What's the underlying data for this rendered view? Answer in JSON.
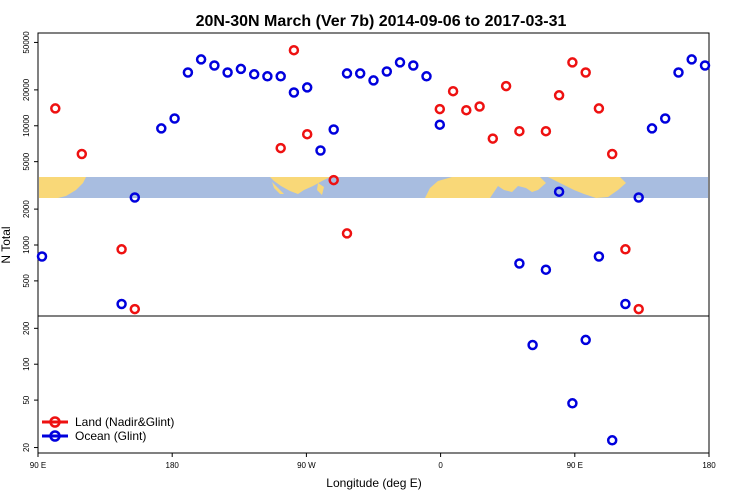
{
  "chart_data": {
    "type": "scatter",
    "title": "20N-30N March (Ver 7b)   2014-09-06 to 2017-03-31",
    "xlabel": "Longitude (deg E)",
    "ylabel": "N Total",
    "y_scale": "log",
    "ylim": [
      18,
      60000
    ],
    "x_ticks": [
      "90 E",
      "180",
      "90 W",
      "0",
      "90 E",
      "180"
    ],
    "y_ticks": [
      50000,
      20000,
      10000,
      5000,
      2000,
      1000,
      500,
      200,
      100,
      50,
      20
    ],
    "legend": [
      "Land (Nadir&Glint)",
      "Ocean (Glint)"
    ],
    "legend_position": "bottom-left",
    "colors": {
      "land": "#ee1111",
      "ocean": "#0000dd",
      "map_ocean": "#a8bde0",
      "map_land": "#f9d878"
    },
    "series": [
      {
        "name": "Land (Nadir&Glint)",
        "points": [
          {
            "lon_index": 1,
            "value": 14000
          },
          {
            "lon_index": 3,
            "value": 5800
          },
          {
            "lon_index": 6,
            "value": 920
          },
          {
            "lon_index": 7,
            "value": 290
          },
          {
            "lon_index": 18,
            "value": 6500
          },
          {
            "lon_index": 19,
            "value": 43000
          },
          {
            "lon_index": 20,
            "value": 8500
          },
          {
            "lon_index": 22,
            "value": 3500
          },
          {
            "lon_index": 23,
            "value": 1250
          },
          {
            "lon_index": 30,
            "value": 13800
          },
          {
            "lon_index": 31,
            "value": 19500
          },
          {
            "lon_index": 32,
            "value": 13500
          },
          {
            "lon_index": 33,
            "value": 14500
          },
          {
            "lon_index": 34,
            "value": 7800
          },
          {
            "lon_index": 35,
            "value": 21500
          },
          {
            "lon_index": 36,
            "value": 9000
          },
          {
            "lon_index": 38,
            "value": 9000
          },
          {
            "lon_index": 39,
            "value": 18000
          },
          {
            "lon_index": 40,
            "value": 34000
          },
          {
            "lon_index": 41,
            "value": 28000
          },
          {
            "lon_index": 42,
            "value": 14000
          },
          {
            "lon_index": 43,
            "value": 5800
          },
          {
            "lon_index": 44,
            "value": 920
          },
          {
            "lon_index": 45,
            "value": 290
          }
        ]
      },
      {
        "name": "Ocean (Glint)",
        "points": [
          {
            "lon_index": 0,
            "value": 800
          },
          {
            "lon_index": 6,
            "value": 320
          },
          {
            "lon_index": 7,
            "value": 2500
          },
          {
            "lon_index": 9,
            "value": 9500
          },
          {
            "lon_index": 10,
            "value": 11500
          },
          {
            "lon_index": 11,
            "value": 28000
          },
          {
            "lon_index": 12,
            "value": 36000
          },
          {
            "lon_index": 13,
            "value": 32000
          },
          {
            "lon_index": 14,
            "value": 28000
          },
          {
            "lon_index": 15,
            "value": 30000
          },
          {
            "lon_index": 16,
            "value": 27000
          },
          {
            "lon_index": 17,
            "value": 26000
          },
          {
            "lon_index": 18,
            "value": 26000
          },
          {
            "lon_index": 19,
            "value": 19000
          },
          {
            "lon_index": 20,
            "value": 21000
          },
          {
            "lon_index": 21,
            "value": 6200
          },
          {
            "lon_index": 22,
            "value": 9300
          },
          {
            "lon_index": 23,
            "value": 27500
          },
          {
            "lon_index": 24,
            "value": 27500
          },
          {
            "lon_index": 25,
            "value": 24000
          },
          {
            "lon_index": 26,
            "value": 28500
          },
          {
            "lon_index": 27,
            "value": 34000
          },
          {
            "lon_index": 28,
            "value": 32000
          },
          {
            "lon_index": 29,
            "value": 26000
          },
          {
            "lon_index": 30,
            "value": 10200
          },
          {
            "lon_index": 36,
            "value": 700
          },
          {
            "lon_index": 37,
            "value": 145
          },
          {
            "lon_index": 38,
            "value": 620
          },
          {
            "lon_index": 39,
            "value": 2800
          },
          {
            "lon_index": 40,
            "value": 47
          },
          {
            "lon_index": 41,
            "value": 160
          },
          {
            "lon_index": 42,
            "value": 800
          },
          {
            "lon_index": 43,
            "value": 23
          },
          {
            "lon_index": 44,
            "value": 320
          },
          {
            "lon_index": 45,
            "value": 2500
          },
          {
            "lon_index": 46,
            "value": 9500
          },
          {
            "lon_index": 47,
            "value": 11500
          },
          {
            "lon_index": 48,
            "value": 28000
          },
          {
            "lon_index": 49,
            "value": 36000
          },
          {
            "lon_index": 50,
            "value": 32000
          }
        ]
      }
    ]
  }
}
